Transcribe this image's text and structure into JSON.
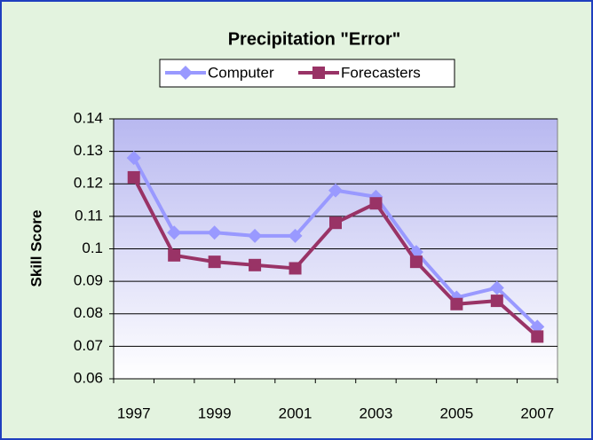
{
  "chart_data": {
    "type": "line",
    "title": "Precipitation \"Error\"",
    "y_label": "Skill Score",
    "categories": [
      "1997",
      null,
      "1999",
      null,
      "2001",
      null,
      "2003",
      null,
      "2005",
      null,
      "2007"
    ],
    "series": [
      {
        "name": "Computer",
        "color": "#9999ff",
        "marker": "diamond",
        "values": [
          0.128,
          0.105,
          0.105,
          0.104,
          0.104,
          0.118,
          0.116,
          0.099,
          0.085,
          0.088,
          0.076
        ]
      },
      {
        "name": "Forecasters",
        "color": "#993366",
        "marker": "square",
        "values": [
          0.122,
          0.098,
          0.096,
          0.095,
          0.094,
          0.108,
          0.114,
          0.096,
          0.083,
          0.084,
          0.073
        ]
      }
    ],
    "ylim": [
      0.06,
      0.14
    ],
    "yticks": [
      0.06,
      0.07,
      0.08,
      0.09,
      0.1,
      0.11,
      0.12,
      0.13,
      0.14
    ],
    "grid": true,
    "legend": "top"
  }
}
